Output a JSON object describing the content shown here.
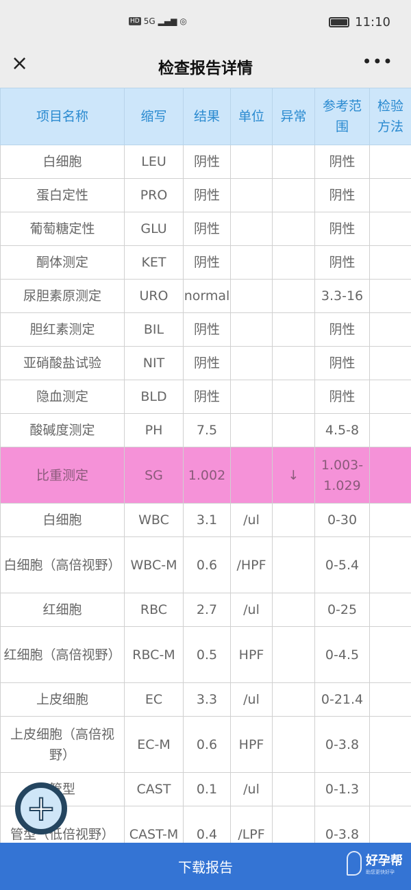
{
  "status": {
    "time": "11:10",
    "network": "5G",
    "hd": "HD"
  },
  "nav": {
    "title": "检查报告详情",
    "close": "×",
    "more": "•••"
  },
  "table": {
    "headers": [
      "项目名称",
      "缩写",
      "结果",
      "单位",
      "异常",
      "参考范围",
      "检验方法"
    ],
    "rows": [
      [
        "白细胞",
        "LEU",
        "阴性",
        "",
        "",
        "阴性",
        ""
      ],
      [
        "蛋白定性",
        "PRO",
        "阴性",
        "",
        "",
        "阴性",
        ""
      ],
      [
        "葡萄糖定性",
        "GLU",
        "阴性",
        "",
        "",
        "阴性",
        ""
      ],
      [
        "酮体测定",
        "KET",
        "阴性",
        "",
        "",
        "阴性",
        ""
      ],
      [
        "尿胆素原测定",
        "URO",
        "normal",
        "",
        "",
        "3.3-16",
        ""
      ],
      [
        "胆红素测定",
        "BIL",
        "阴性",
        "",
        "",
        "阴性",
        ""
      ],
      [
        "亚硝酸盐试验",
        "NIT",
        "阴性",
        "",
        "",
        "阴性",
        ""
      ],
      [
        "隐血测定",
        "BLD",
        "阴性",
        "",
        "",
        "阴性",
        ""
      ],
      [
        "酸碱度测定",
        "PH",
        "7.5",
        "",
        "",
        "4.5-8",
        ""
      ],
      [
        "比重测定",
        "SG",
        "1.002",
        "",
        "↓",
        "1.003-1.029",
        ""
      ],
      [
        "白细胞",
        "WBC",
        "3.1",
        "/ul",
        "",
        "0-30",
        ""
      ],
      [
        "白细胞（高倍视野）",
        "WBC-M",
        "0.6",
        "/HPF",
        "",
        "0-5.4",
        ""
      ],
      [
        "红细胞",
        "RBC",
        "2.7",
        "/ul",
        "",
        "0-25",
        ""
      ],
      [
        "红细胞（高倍视野）",
        "RBC-M",
        "0.5",
        "HPF",
        "",
        "0-4.5",
        ""
      ],
      [
        "上皮细胞",
        "EC",
        "3.3",
        "/ul",
        "",
        "0-21.4",
        ""
      ],
      [
        "上皮细胞（高倍视野）",
        "EC-M",
        "0.6",
        "HPF",
        "",
        "0-3.8",
        ""
      ],
      [
        "管型",
        "CAST",
        "0.1",
        "/ul",
        "",
        "0-1.3",
        ""
      ],
      [
        "管型（低倍视野）",
        "CAST-M",
        "0.4",
        "/LPF",
        "",
        "0-3.8",
        ""
      ]
    ],
    "highlight_color": "#f592d8"
  },
  "bottom": {
    "download": "下载报告",
    "brand": "好孕帮",
    "brand_slogan": "助您更快好孕",
    "color": "#3474d4"
  },
  "fab": {
    "icon": "plus-icon"
  }
}
